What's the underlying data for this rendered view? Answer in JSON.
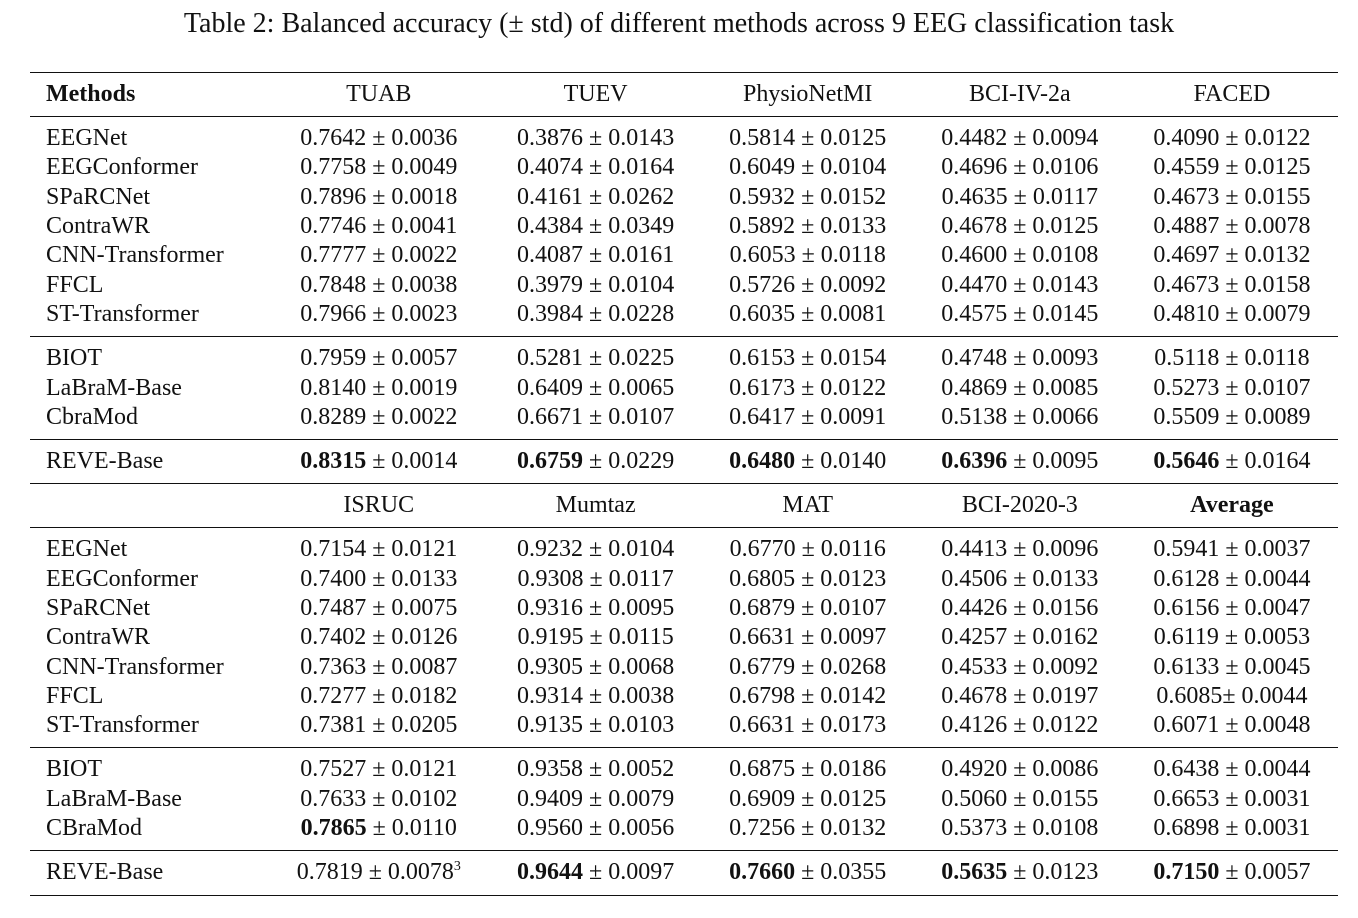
{
  "caption": "Table 2: Balanced accuracy (± std) of different methods across 9 EEG classification task",
  "tables": [
    {
      "header": [
        "Methods",
        "TUAB",
        "TUEV",
        "PhysioNetMI",
        "BCI-IV-2a",
        "FACED"
      ],
      "header_bold": [
        true,
        false,
        false,
        false,
        false,
        false
      ],
      "sections": [
        [
          {
            "method": "EEGNet",
            "cells": [
              {
                "m": "0.7642",
                "s": " ± 0.0036"
              },
              {
                "m": "0.3876",
                "s": " ± 0.0143"
              },
              {
                "m": "0.5814",
                "s": " ± 0.0125"
              },
              {
                "m": "0.4482",
                "s": " ± 0.0094"
              },
              {
                "m": "0.4090",
                "s": " ± 0.0122"
              }
            ]
          },
          {
            "method": "EEGConformer",
            "cells": [
              {
                "m": "0.7758",
                "s": " ± 0.0049"
              },
              {
                "m": "0.4074",
                "s": " ± 0.0164"
              },
              {
                "m": "0.6049",
                "s": " ± 0.0104"
              },
              {
                "m": "0.4696",
                "s": " ± 0.0106"
              },
              {
                "m": "0.4559",
                "s": " ± 0.0125"
              }
            ]
          },
          {
            "method": "SPaRCNet",
            "cells": [
              {
                "m": "0.7896",
                "s": " ± 0.0018"
              },
              {
                "m": "0.4161",
                "s": " ± 0.0262"
              },
              {
                "m": "0.5932",
                "s": " ± 0.0152"
              },
              {
                "m": "0.4635",
                "s": " ± 0.0117"
              },
              {
                "m": "0.4673",
                "s": " ± 0.0155"
              }
            ]
          },
          {
            "method": "ContraWR",
            "cells": [
              {
                "m": "0.7746",
                "s": " ± 0.0041"
              },
              {
                "m": "0.4384",
                "s": " ± 0.0349"
              },
              {
                "m": "0.5892",
                "s": " ± 0.0133"
              },
              {
                "m": "0.4678",
                "s": " ± 0.0125"
              },
              {
                "m": "0.4887",
                "s": " ± 0.0078"
              }
            ]
          },
          {
            "method": "CNN-Transformer",
            "cells": [
              {
                "m": "0.7777",
                "s": " ± 0.0022"
              },
              {
                "m": "0.4087",
                "s": " ± 0.0161"
              },
              {
                "m": "0.6053",
                "s": " ± 0.0118"
              },
              {
                "m": "0.4600",
                "s": " ± 0.0108"
              },
              {
                "m": "0.4697",
                "s": " ± 0.0132"
              }
            ]
          },
          {
            "method": "FFCL",
            "cells": [
              {
                "m": "0.7848",
                "s": " ± 0.0038"
              },
              {
                "m": "0.3979",
                "s": " ± 0.0104"
              },
              {
                "m": "0.5726",
                "s": " ± 0.0092"
              },
              {
                "m": "0.4470",
                "s": " ± 0.0143"
              },
              {
                "m": "0.4673",
                "s": " ± 0.0158"
              }
            ]
          },
          {
            "method": "ST-Transformer",
            "cells": [
              {
                "m": "0.7966",
                "s": " ± 0.0023"
              },
              {
                "m": "0.3984",
                "s": " ± 0.0228"
              },
              {
                "m": "0.6035",
                "s": " ± 0.0081"
              },
              {
                "m": "0.4575",
                "s": " ± 0.0145"
              },
              {
                "m": "0.4810",
                "s": " ± 0.0079"
              }
            ]
          }
        ],
        [
          {
            "method": "BIOT",
            "cells": [
              {
                "m": "0.7959",
                "s": " ± 0.0057"
              },
              {
                "m": "0.5281",
                "s": " ± 0.0225"
              },
              {
                "m": "0.6153",
                "s": " ± 0.0154"
              },
              {
                "m": "0.4748",
                "s": " ± 0.0093"
              },
              {
                "m": "0.5118",
                "s": " ± 0.0118"
              }
            ]
          },
          {
            "method": "LaBraM-Base",
            "cells": [
              {
                "m": "0.8140",
                "s": " ± 0.0019"
              },
              {
                "m": "0.6409",
                "s": " ± 0.0065"
              },
              {
                "m": "0.6173",
                "s": " ± 0.0122"
              },
              {
                "m": "0.4869",
                "s": " ± 0.0085"
              },
              {
                "m": "0.5273",
                "s": " ± 0.0107"
              }
            ]
          },
          {
            "method": "CbraMod",
            "cells": [
              {
                "m": "0.8289",
                "s": " ± 0.0022"
              },
              {
                "m": "0.6671",
                "s": " ± 0.0107"
              },
              {
                "m": "0.6417",
                "s": " ± 0.0091"
              },
              {
                "m": "0.5138",
                "s": " ± 0.0066"
              },
              {
                "m": "0.5509",
                "s": " ± 0.0089"
              }
            ]
          }
        ],
        [
          {
            "method": "REVE-Base",
            "cells": [
              {
                "m": "0.8315",
                "s": " ± 0.0014",
                "b": true
              },
              {
                "m": "0.6759",
                "s": " ± 0.0229",
                "b": true
              },
              {
                "m": "0.6480",
                "s": " ± 0.0140",
                "b": true
              },
              {
                "m": "0.6396",
                "s": " ± 0.0095",
                "b": true
              },
              {
                "m": "0.5646",
                "s": " ± 0.0164",
                "b": true
              }
            ]
          }
        ]
      ]
    },
    {
      "header": [
        "",
        "ISRUC",
        "Mumtaz",
        "MAT",
        "BCI-2020-3",
        "Average"
      ],
      "header_bold": [
        false,
        false,
        false,
        false,
        false,
        true
      ],
      "sections": [
        [
          {
            "method": "EEGNet",
            "cells": [
              {
                "m": "0.7154",
                "s": " ± 0.0121"
              },
              {
                "m": "0.9232",
                "s": " ± 0.0104"
              },
              {
                "m": "0.6770",
                "s": " ± 0.0116"
              },
              {
                "m": "0.4413",
                "s": " ± 0.0096"
              },
              {
                "m": "0.5941",
                "s": " ± 0.0037"
              }
            ]
          },
          {
            "method": "EEGConformer",
            "cells": [
              {
                "m": "0.7400",
                "s": " ± 0.0133"
              },
              {
                "m": "0.9308",
                "s": " ± 0.0117"
              },
              {
                "m": "0.6805",
                "s": " ± 0.0123"
              },
              {
                "m": "0.4506",
                "s": " ± 0.0133"
              },
              {
                "m": "0.6128",
                "s": " ± 0.0044"
              }
            ]
          },
          {
            "method": "SPaRCNet",
            "cells": [
              {
                "m": "0.7487",
                "s": " ± 0.0075"
              },
              {
                "m": "0.9316",
                "s": " ± 0.0095"
              },
              {
                "m": "0.6879",
                "s": " ± 0.0107"
              },
              {
                "m": "0.4426",
                "s": " ± 0.0156"
              },
              {
                "m": "0.6156",
                "s": " ± 0.0047"
              }
            ]
          },
          {
            "method": "ContraWR",
            "cells": [
              {
                "m": "0.7402",
                "s": " ± 0.0126"
              },
              {
                "m": "0.9195",
                "s": " ± 0.0115"
              },
              {
                "m": "0.6631",
                "s": " ± 0.0097"
              },
              {
                "m": "0.4257",
                "s": " ± 0.0162"
              },
              {
                "m": "0.6119",
                "s": " ± 0.0053"
              }
            ]
          },
          {
            "method": "CNN-Transformer",
            "cells": [
              {
                "m": "0.7363",
                "s": " ± 0.0087"
              },
              {
                "m": "0.9305",
                "s": " ± 0.0068"
              },
              {
                "m": "0.6779",
                "s": " ± 0.0268"
              },
              {
                "m": "0.4533",
                "s": " ± 0.0092"
              },
              {
                "m": "0.6133",
                "s": " ± 0.0045"
              }
            ]
          },
          {
            "method": "FFCL",
            "cells": [
              {
                "m": "0.7277",
                "s": " ± 0.0182"
              },
              {
                "m": "0.9314",
                "s": " ± 0.0038"
              },
              {
                "m": "0.6798",
                "s": " ± 0.0142"
              },
              {
                "m": "0.4678",
                "s": " ± 0.0197"
              },
              {
                "m": "0.6085",
                "s": "± 0.0044"
              }
            ]
          },
          {
            "method": "ST-Transformer",
            "cells": [
              {
                "m": "0.7381",
                "s": " ± 0.0205"
              },
              {
                "m": "0.9135",
                "s": " ± 0.0103"
              },
              {
                "m": "0.6631",
                "s": " ± 0.0173"
              },
              {
                "m": "0.4126",
                "s": " ± 0.0122"
              },
              {
                "m": "0.6071",
                "s": " ± 0.0048"
              }
            ]
          }
        ],
        [
          {
            "method": "BIOT",
            "cells": [
              {
                "m": "0.7527",
                "s": " ± 0.0121"
              },
              {
                "m": "0.9358",
                "s": " ± 0.0052"
              },
              {
                "m": "0.6875",
                "s": " ± 0.0186"
              },
              {
                "m": "0.4920",
                "s": " ± 0.0086"
              },
              {
                "m": "0.6438",
                "s": " ± 0.0044"
              }
            ]
          },
          {
            "method": "LaBraM-Base",
            "cells": [
              {
                "m": "0.7633",
                "s": " ± 0.0102"
              },
              {
                "m": "0.9409",
                "s": " ± 0.0079"
              },
              {
                "m": "0.6909",
                "s": " ± 0.0125"
              },
              {
                "m": "0.5060",
                "s": " ± 0.0155"
              },
              {
                "m": "0.6653",
                "s": " ± 0.0031"
              }
            ]
          },
          {
            "method": "CBraMod",
            "cells": [
              {
                "m": "0.7865",
                "s": " ± 0.0110",
                "b": true
              },
              {
                "m": "0.9560",
                "s": " ± 0.0056"
              },
              {
                "m": "0.7256",
                "s": " ± 0.0132"
              },
              {
                "m": "0.5373",
                "s": " ± 0.0108"
              },
              {
                "m": "0.6898",
                "s": " ± 0.0031"
              }
            ]
          }
        ],
        [
          {
            "method": "REVE-Base",
            "cells": [
              {
                "m": "0.7819",
                "s": " ± 0.0078",
                "sup": "3"
              },
              {
                "m": "0.9644",
                "s": " ± 0.0097",
                "b": true
              },
              {
                "m": "0.7660",
                "s": " ± 0.0355",
                "b": true
              },
              {
                "m": "0.5635",
                "s": " ± 0.0123",
                "b": true
              },
              {
                "m": "0.7150",
                "s": " ± 0.0057",
                "b": true
              }
            ]
          }
        ]
      ]
    }
  ]
}
